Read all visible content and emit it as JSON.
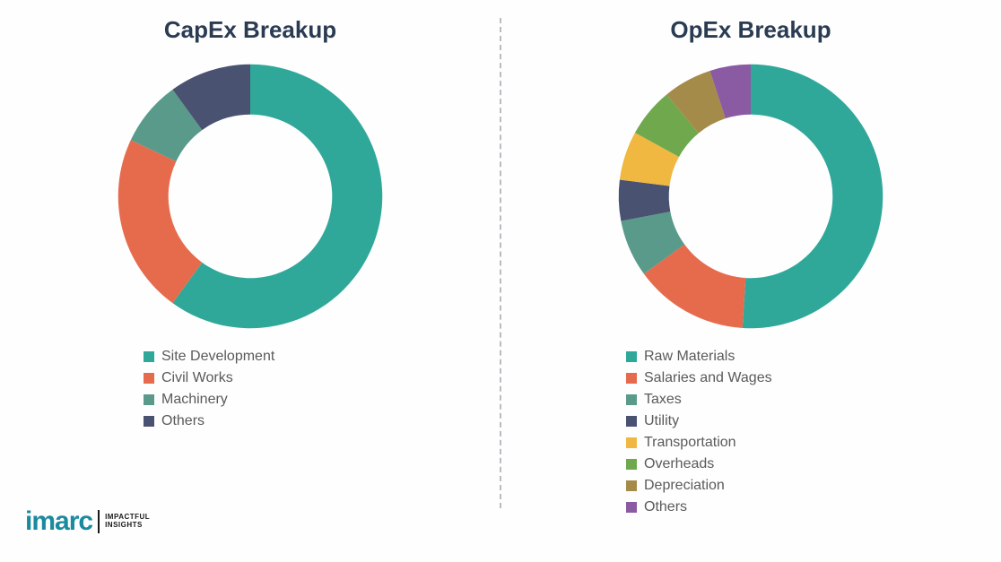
{
  "background_color": "#f8f9fa",
  "divider_color": "#b8bcc0",
  "title_color": "#2a3b52",
  "title_fontsize": 26,
  "legend_text_color": "#5a5a5a",
  "legend_fontsize": 16,
  "donut_inner_ratio": 0.62,
  "left_chart": {
    "title": "CapEx Breakup",
    "type": "donut",
    "slices": [
      {
        "label": "Site Development",
        "value": 60,
        "color": "#2fa89a"
      },
      {
        "label": "Civil Works",
        "value": 22,
        "color": "#e66b4d"
      },
      {
        "label": "Machinery",
        "value": 8,
        "color": "#5a9a8a"
      },
      {
        "label": "Others",
        "value": 10,
        "color": "#4a5272"
      }
    ]
  },
  "right_chart": {
    "title": "OpEx Breakup",
    "type": "donut",
    "slices": [
      {
        "label": "Raw Materials",
        "value": 51,
        "color": "#2fa89a"
      },
      {
        "label": "Salaries and Wages",
        "value": 14,
        "color": "#e66b4d"
      },
      {
        "label": "Taxes",
        "value": 7,
        "color": "#5a9a8a"
      },
      {
        "label": "Utility",
        "value": 5,
        "color": "#4a5272"
      },
      {
        "label": "Transportation",
        "value": 6,
        "color": "#f0b840"
      },
      {
        "label": "Overheads",
        "value": 6,
        "color": "#6fa84d"
      },
      {
        "label": "Depreciation",
        "value": 6,
        "color": "#a58b4a"
      },
      {
        "label": "Others",
        "value": 5,
        "color": "#8a5aa3"
      }
    ]
  },
  "logo": {
    "main": "imarc",
    "tagline_line1": "IMPACTFUL",
    "tagline_line2": "INSIGHTS",
    "main_color": "#1a8a9e",
    "sep_color": "#1a1a1a"
  }
}
